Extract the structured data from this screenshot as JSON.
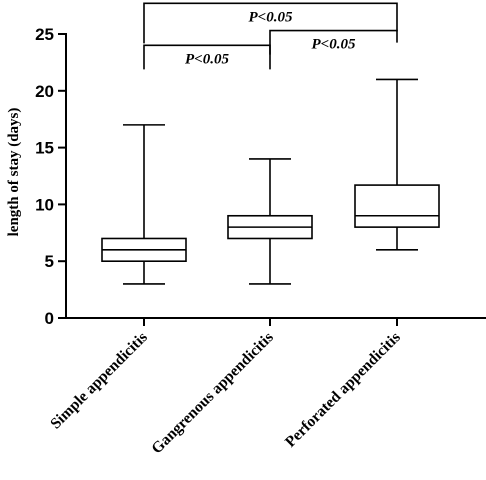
{
  "chart_data": {
    "type": "box",
    "ylabel": "length of stay (days)",
    "ylim": [
      0,
      25
    ],
    "yticks": [
      0,
      5,
      10,
      15,
      20,
      25
    ],
    "categories": [
      "Simple appendicitis",
      "Gangrenous appendicitis",
      "Perforated appendicitis"
    ],
    "boxes": [
      {
        "category": "Simple appendicitis",
        "min": 3,
        "q1": 5,
        "median": 6,
        "q3": 7,
        "max": 17
      },
      {
        "category": "Gangrenous appendicitis",
        "min": 3,
        "q1": 7,
        "median": 8,
        "q3": 9,
        "max": 14
      },
      {
        "category": "Perforated appendicitis",
        "min": 6,
        "q1": 8,
        "median": 9,
        "q3": 11.7,
        "max": 21
      }
    ],
    "significance": [
      {
        "from": 0,
        "to": 1,
        "label": "P<0.05",
        "y": 24
      },
      {
        "from": 1,
        "to": 2,
        "label": "P<0.05",
        "y": 25.3
      },
      {
        "from": 0,
        "to": 2,
        "label": "P<0.05",
        "y": 27.7
      }
    ],
    "grid": false,
    "legend": "none"
  }
}
